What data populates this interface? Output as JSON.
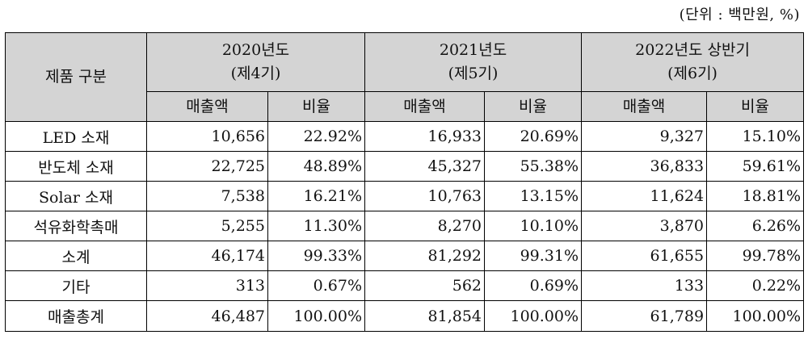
{
  "unit_note": "(단위 : 백만원, %)",
  "header": {
    "category": "제품 구분",
    "periods": [
      {
        "year": "2020년도",
        "term": "(제4기)"
      },
      {
        "year": "2021년도",
        "term": "(제5기)"
      },
      {
        "year": "2022년도 상반기",
        "term": "(제6기)"
      }
    ],
    "sales_label": "매출액",
    "ratio_label": "비율"
  },
  "rows": [
    {
      "label": "LED 소재",
      "values": [
        "10,656",
        "22.92%",
        "16,933",
        "20.69%",
        "9,327",
        "15.10%"
      ]
    },
    {
      "label": "반도체 소재",
      "values": [
        "22,725",
        "48.89%",
        "45,327",
        "55.38%",
        "36,833",
        "59.61%"
      ]
    },
    {
      "label": "Solar 소재",
      "values": [
        "7,538",
        "16.21%",
        "10,763",
        "13.15%",
        "11,624",
        "18.81%"
      ]
    },
    {
      "label": "석유화학촉매",
      "values": [
        "5,255",
        "11.30%",
        "8,270",
        "10.10%",
        "3,870",
        "6.26%"
      ]
    },
    {
      "label": "소계",
      "values": [
        "46,174",
        "99.33%",
        "81,292",
        "99.31%",
        "61,655",
        "99.78%"
      ]
    },
    {
      "label": "기타",
      "values": [
        "313",
        "0.67%",
        "562",
        "0.69%",
        "133",
        "0.22%"
      ]
    },
    {
      "label": "매출총계",
      "values": [
        "46,487",
        "100.00%",
        "81,854",
        "100.00%",
        "61,789",
        "100.00%"
      ]
    }
  ]
}
